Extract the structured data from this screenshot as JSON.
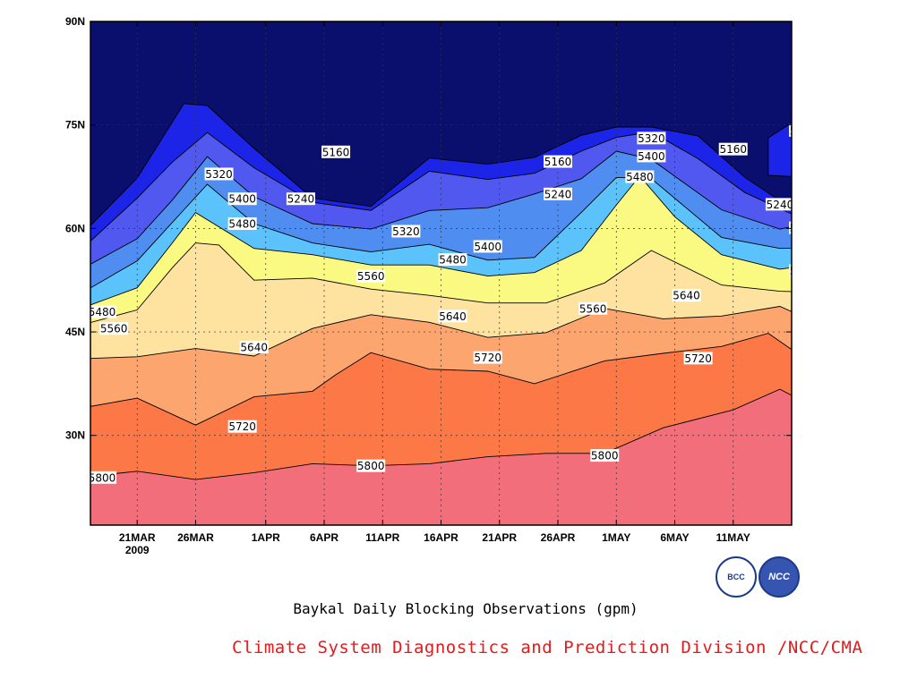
{
  "chart_data": {
    "type": "heatmap",
    "title": "Baykal Daily Blocking Observations (gpm)",
    "credit": "Climate System Diagnostics and Prediction Division /NCC/CMA",
    "x_dates": [
      "2009-03-17",
      "2009-05-16"
    ],
    "y_range": [
      17,
      90
    ],
    "x_ticks": [
      {
        "label": "21MAR",
        "sublabel": "2009",
        "date": "2009-03-21"
      },
      {
        "label": "26MAR",
        "date": "2009-03-26"
      },
      {
        "label": "1APR",
        "date": "2009-04-01"
      },
      {
        "label": "6APR",
        "date": "2009-04-06"
      },
      {
        "label": "11APR",
        "date": "2009-04-11"
      },
      {
        "label": "16APR",
        "date": "2009-04-16"
      },
      {
        "label": "21APR",
        "date": "2009-04-21"
      },
      {
        "label": "26APR",
        "date": "2009-04-26"
      },
      {
        "label": "1MAY",
        "date": "2009-05-01"
      },
      {
        "label": "6MAY",
        "date": "2009-05-06"
      },
      {
        "label": "11MAY",
        "date": "2009-05-11"
      }
    ],
    "y_ticks": [
      {
        "label": "30N",
        "value": 30
      },
      {
        "label": "45N",
        "value": 45
      },
      {
        "label": "60N",
        "value": 60
      },
      {
        "label": "75N",
        "value": 75
      },
      {
        "label": "90N",
        "value": 90
      }
    ],
    "grid": true,
    "contour_levels": [
      5160,
      5240,
      5320,
      5400,
      5480,
      5560,
      5640,
      5720,
      5800
    ],
    "band_colors": {
      "below_5160": "#0a0f6e",
      "5160_5240": "#1c24e8",
      "5240_5320": "#5058f0",
      "5320_5400": "#4f8ef0",
      "5400_5480": "#5cc2fc",
      "5480_5560": "#fafa82",
      "5560_5640": "#fde2a0",
      "5640_5720": "#fca56e",
      "5720_5800": "#fc7846",
      "above_5800": "#f26e7a"
    },
    "isolines": {
      "5800": [
        [
          -1,
          23.9
        ],
        [
          4,
          24.8
        ],
        [
          9,
          23.6
        ],
        [
          14,
          24.6
        ],
        [
          19,
          25.9
        ],
        [
          24,
          25.6
        ],
        [
          29,
          25.9
        ],
        [
          34,
          26.9
        ],
        [
          39,
          27.4
        ],
        [
          44,
          27.4
        ],
        [
          49,
          31.1
        ],
        [
          55,
          33.7
        ],
        [
          59,
          36.7
        ],
        [
          60,
          35.8
        ],
        [
          64,
          28.9
        ],
        [
          69,
          27.9
        ],
        [
          74,
          28.8
        ],
        [
          79,
          31.6
        ]
      ],
      "5720": [
        [
          -1,
          33.9
        ],
        [
          4,
          35.4
        ],
        [
          9,
          31.5
        ],
        [
          14,
          35.6
        ],
        [
          19,
          36.4
        ],
        [
          21,
          38.8
        ],
        [
          24,
          42
        ],
        [
          29,
          39.6
        ],
        [
          34,
          39.3
        ],
        [
          38,
          37.5
        ],
        [
          44,
          40.8
        ],
        [
          49,
          41.9
        ],
        [
          54,
          42.9
        ],
        [
          58,
          44.8
        ],
        [
          62,
          40.1
        ],
        [
          69,
          42.6
        ],
        [
          74,
          42.6
        ],
        [
          79,
          42.8
        ]
      ],
      "5640": [
        [
          -1,
          41.1
        ],
        [
          4,
          41.4
        ],
        [
          9,
          42.6
        ],
        [
          14,
          41.5
        ],
        [
          19,
          45.5
        ],
        [
          24,
          47.5
        ],
        [
          29,
          46.4
        ],
        [
          34,
          44.2
        ],
        [
          39,
          44.9
        ],
        [
          44,
          48.4
        ],
        [
          49,
          46.9
        ],
        [
          54,
          47.3
        ],
        [
          59,
          48.7
        ],
        [
          64,
          44.9
        ],
        [
          70,
          51.4
        ],
        [
          74,
          50.6
        ],
        [
          79,
          48.9
        ]
      ],
      "5560": [
        [
          -1,
          45.9
        ],
        [
          4,
          48.2
        ],
        [
          7,
          54.3
        ],
        [
          9,
          57.9
        ],
        [
          11,
          57.6
        ],
        [
          14,
          52.5
        ],
        [
          19,
          52.8
        ],
        [
          24,
          51.2
        ],
        [
          29,
          50.3
        ],
        [
          34,
          49.2
        ],
        [
          39,
          49.2
        ],
        [
          44,
          52.1
        ],
        [
          48,
          56.8
        ],
        [
          54,
          51.8
        ],
        [
          59,
          50.9
        ],
        [
          64,
          50.7
        ],
        [
          69,
          53.4
        ],
        [
          74,
          52.6
        ],
        [
          79,
          52.5
        ]
      ],
      "5480": [
        [
          -1,
          48.3
        ],
        [
          4,
          51.4
        ],
        [
          7,
          57.9
        ],
        [
          9,
          62.3
        ],
        [
          14,
          57.1
        ],
        [
          19,
          56.2
        ],
        [
          24,
          54.7
        ],
        [
          29,
          54.7
        ],
        [
          34,
          53.1
        ],
        [
          38,
          53.6
        ],
        [
          42,
          56.8
        ],
        [
          45,
          63.4
        ],
        [
          47,
          67.6
        ],
        [
          50,
          61.7
        ],
        [
          54,
          56.2
        ],
        [
          59,
          54.1
        ],
        [
          64,
          55.2
        ],
        [
          69,
          57.6
        ],
        [
          74,
          57.1
        ],
        [
          79,
          56.6
        ]
      ],
      "5400": [
        [
          -1,
          50.4
        ],
        [
          4,
          55.3
        ],
        [
          8,
          62.7
        ],
        [
          10,
          66.4
        ],
        [
          14,
          60.7
        ],
        [
          19,
          57.9
        ],
        [
          24,
          56.6
        ],
        [
          29,
          57.7
        ],
        [
          34,
          55.4
        ],
        [
          38,
          55.8
        ],
        [
          42,
          62.3
        ],
        [
          45,
          67.4
        ],
        [
          48,
          67.2
        ],
        [
          54,
          58.7
        ],
        [
          59,
          57.1
        ],
        [
          64,
          57.3
        ],
        [
          69,
          60.3
        ],
        [
          74,
          61.2
        ],
        [
          79,
          59.1
        ]
      ],
      "5320": [
        [
          -1,
          53.9
        ],
        [
          4,
          58.5
        ],
        [
          7,
          64.1
        ],
        [
          10,
          70.4
        ],
        [
          14,
          64.6
        ],
        [
          19,
          60.7
        ],
        [
          24,
          59.9
        ],
        [
          29,
          62.6
        ],
        [
          34,
          63
        ],
        [
          38,
          65
        ],
        [
          42,
          67.2
        ],
        [
          45,
          71.2
        ],
        [
          48,
          70
        ],
        [
          54,
          62.7
        ],
        [
          59,
          59.9
        ],
        [
          64,
          61.6
        ],
        [
          68,
          64.1
        ],
        [
          74,
          64.5
        ],
        [
          79,
          63.4
        ]
      ],
      "5240": [
        [
          -1,
          56.6
        ],
        [
          4,
          64.4
        ],
        [
          7,
          69.6
        ],
        [
          10,
          73.9
        ],
        [
          14,
          68.8
        ],
        [
          19,
          63.8
        ],
        [
          24,
          62.6
        ],
        [
          29,
          68.3
        ],
        [
          34,
          67.1
        ],
        [
          38,
          68
        ],
        [
          42,
          71.2
        ],
        [
          45,
          73.2
        ],
        [
          48,
          74
        ],
        [
          52,
          70.1
        ],
        [
          56,
          65.2
        ],
        [
          60,
          62.1
        ],
        [
          64,
          63.9
        ],
        [
          67,
          67.2
        ],
        [
          69,
          76.8
        ],
        [
          73,
          84.4
        ],
        [
          74,
          86
        ],
        [
          79,
          90
        ]
      ],
      "5160": [
        [
          -1,
          58.7
        ],
        [
          4,
          67.3
        ],
        [
          8,
          78.1
        ],
        [
          10,
          77.8
        ],
        [
          14,
          71.6
        ],
        [
          19,
          64.4
        ],
        [
          24,
          63.2
        ],
        [
          29,
          70.2
        ],
        [
          34,
          69.3
        ],
        [
          38,
          70.3
        ],
        [
          42,
          73.5
        ],
        [
          45,
          74.7
        ],
        [
          48,
          74.7
        ],
        [
          52,
          73.4
        ],
        [
          56,
          67.4
        ],
        [
          59,
          64
        ],
        [
          62,
          63
        ],
        [
          64,
          65.5
        ],
        [
          66,
          70.4
        ],
        [
          68,
          73.9
        ],
        [
          69,
          76.8
        ],
        [
          69,
          90
        ]
      ]
    },
    "contour_labels": [
      {
        "text": "5800",
        "x": 1,
        "y": 23.9
      },
      {
        "text": "5800",
        "x": 24,
        "y": 25.6
      },
      {
        "text": "5800",
        "x": 44,
        "y": 27.1
      },
      {
        "text": "5800",
        "x": 72,
        "y": 28.2
      },
      {
        "text": "5720",
        "x": 13,
        "y": 31.3
      },
      {
        "text": "5720",
        "x": 34,
        "y": 41.3
      },
      {
        "text": "5720",
        "x": 52,
        "y": 41.2
      },
      {
        "text": "5720",
        "x": 70,
        "y": 36.7
      },
      {
        "text": "5640",
        "x": 14,
        "y": 42.8
      },
      {
        "text": "5640",
        "x": 31,
        "y": 47.3
      },
      {
        "text": "5640",
        "x": 51,
        "y": 50.3
      },
      {
        "text": "5640",
        "x": 67,
        "y": 44.9
      },
      {
        "text": "5560",
        "x": 2,
        "y": 45.5
      },
      {
        "text": "5560",
        "x": 24,
        "y": 53.1
      },
      {
        "text": "5560",
        "x": 43,
        "y": 48.4
      },
      {
        "text": "5560",
        "x": 62,
        "y": 50.4
      },
      {
        "text": "5480",
        "x": 1,
        "y": 47.9
      },
      {
        "text": "5480",
        "x": 13,
        "y": 60.7
      },
      {
        "text": "5480",
        "x": 31,
        "y": 55.5
      },
      {
        "text": "5480",
        "x": 47,
        "y": 67.5
      },
      {
        "text": "5480",
        "x": 61,
        "y": 53.9
      },
      {
        "text": "5480",
        "x": 72,
        "y": 79.1
      },
      {
        "text": "5400",
        "x": 13,
        "y": 64.3
      },
      {
        "text": "5400",
        "x": 34,
        "y": 57.4
      },
      {
        "text": "5400",
        "x": 48,
        "y": 70.5
      },
      {
        "text": "5400",
        "x": 67,
        "y": 62.1
      },
      {
        "text": "5400",
        "x": 72,
        "y": 75.7
      },
      {
        "text": "5400",
        "x": 65,
        "y": 90
      },
      {
        "text": "5320",
        "x": 11,
        "y": 67.9
      },
      {
        "text": "5320",
        "x": 27,
        "y": 59.6
      },
      {
        "text": "5320",
        "x": 48,
        "y": 73.1
      },
      {
        "text": "5320",
        "x": 61,
        "y": 60.1
      },
      {
        "text": "5240",
        "x": 18,
        "y": 64.3
      },
      {
        "text": "5240",
        "x": 40,
        "y": 65
      },
      {
        "text": "5240",
        "x": 59,
        "y": 63.5
      },
      {
        "text": "5240",
        "x": 61,
        "y": 74.2
      },
      {
        "text": "5160",
        "x": 21,
        "y": 71.1
      },
      {
        "text": "5160",
        "x": 40,
        "y": 69.7
      },
      {
        "text": "5160",
        "x": 55,
        "y": 71.5
      },
      {
        "text": "5160",
        "x": 63,
        "y": 64.1
      }
    ],
    "closed_contours": [
      {
        "level": 5160,
        "color": "#1c24e8",
        "points": [
          [
            58,
            67.7
          ],
          [
            65,
            67.1
          ],
          [
            67,
            68.9
          ],
          [
            67,
            72.5
          ],
          [
            67,
            75.8
          ],
          [
            64,
            76.4
          ],
          [
            61,
            76.4
          ],
          [
            58,
            73.1
          ]
        ]
      },
      {
        "level": 5240,
        "color": "#0a0f6e",
        "points": [
          [
            63,
            68.2
          ],
          [
            65,
            68.1
          ],
          [
            65,
            70.1
          ],
          [
            64,
            71.2
          ],
          [
            63,
            70.5
          ]
        ]
      },
      {
        "level": 5320,
        "color": "#4f8ef0",
        "points": [
          [
            70,
            68.8
          ],
          [
            79,
            66.7
          ],
          [
            79,
            83.8
          ],
          [
            75,
            87.5
          ],
          [
            68,
            89.5
          ],
          [
            64,
            89.5
          ],
          [
            62,
            85.1
          ],
          [
            64,
            80.5
          ],
          [
            67,
            75.8
          ],
          [
            68,
            72.5
          ]
        ]
      },
      {
        "level": 5400,
        "color": "#5cc2fc",
        "points": [
          [
            72,
            74.2
          ],
          [
            75,
            75.7
          ],
          [
            78,
            79.5
          ],
          [
            77,
            85.3
          ],
          [
            75,
            88.6
          ],
          [
            70,
            89.9
          ],
          [
            65,
            89.9
          ],
          [
            64,
            85.1
          ],
          [
            67,
            80.9
          ],
          [
            70,
            77
          ]
        ]
      },
      {
        "level": 5480,
        "color": "#fafa82",
        "points": [
          [
            72,
            81.6
          ],
          [
            73,
            79.5
          ],
          [
            74,
            78.6
          ],
          [
            75,
            80.3
          ],
          [
            75,
            82.6
          ],
          [
            74,
            83.6
          ],
          [
            73,
            83.5
          ]
        ]
      }
    ]
  }
}
